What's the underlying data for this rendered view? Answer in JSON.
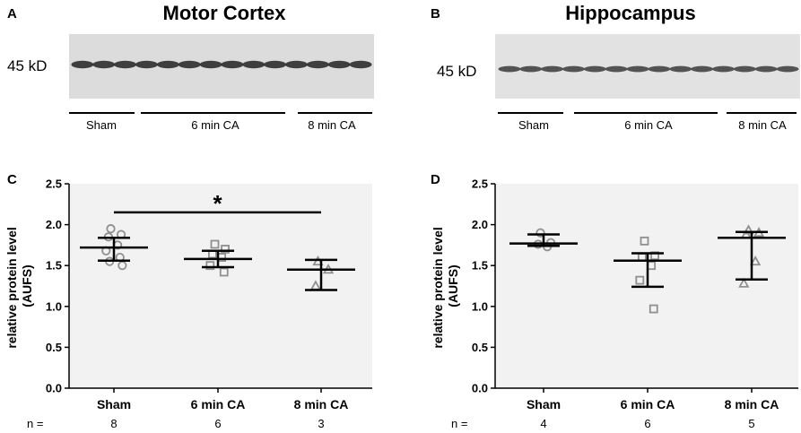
{
  "blots": [
    {
      "panel": "A",
      "title": "Motor Cortex",
      "marker": "45 kD",
      "groups": [
        "Sham",
        "6 min CA",
        "8 min CA"
      ],
      "bands": 14
    },
    {
      "panel": "B",
      "title": "Hippocampus",
      "marker": "45 kD",
      "groups": [
        "Sham",
        "6 min CA",
        "8 min CA"
      ],
      "bands": 14
    }
  ],
  "chart_data": [
    {
      "type": "scatter",
      "panel": "C",
      "title": "",
      "ylabel": "relative protein level (AUFS)",
      "ylabel_lines": [
        "relative protein level",
        "(AUFS)"
      ],
      "ylim": [
        0,
        2.5
      ],
      "yticks": [
        "0.0",
        "0.5",
        "1.0",
        "1.5",
        "2.0",
        "2.5"
      ],
      "categories": [
        "Sham",
        "6 min CA",
        "8 min CA"
      ],
      "markers": [
        "circle",
        "square",
        "triangle"
      ],
      "points": [
        [
          1.95,
          1.88,
          1.85,
          1.75,
          1.68,
          1.6,
          1.55,
          1.5
        ],
        [
          1.76,
          1.7,
          1.64,
          1.6,
          1.5,
          1.42
        ],
        [
          1.55,
          1.45,
          1.25
        ]
      ],
      "mean": [
        1.72,
        1.58,
        1.45
      ],
      "err_low": [
        1.56,
        1.48,
        1.2
      ],
      "err_high": [
        1.84,
        1.68,
        1.57
      ],
      "n_label": "n =",
      "n": [
        "8",
        "6",
        "3"
      ],
      "significance": {
        "from": 0,
        "to": 2,
        "level": 2.15,
        "label": "*"
      }
    },
    {
      "type": "scatter",
      "panel": "D",
      "title": "",
      "ylabel": "relative protein level (AUFS)",
      "ylabel_lines": [
        "relative protein level",
        "(AUFS)"
      ],
      "ylim": [
        0,
        2.5
      ],
      "yticks": [
        "0.0",
        "0.5",
        "1.0",
        "1.5",
        "2.0",
        "2.5"
      ],
      "categories": [
        "Sham",
        "6 min CA",
        "8 min CA"
      ],
      "markers": [
        "circle",
        "square",
        "triangle"
      ],
      "points": [
        [
          1.9,
          1.78,
          1.76,
          1.73
        ],
        [
          1.8,
          1.62,
          1.6,
          1.5,
          1.32,
          0.97
        ],
        [
          1.93,
          1.9,
          1.88,
          1.55,
          1.28
        ]
      ],
      "mean": [
        1.77,
        1.56,
        1.84
      ],
      "err_low": [
        1.74,
        1.24,
        1.33
      ],
      "err_high": [
        1.88,
        1.65,
        1.91
      ],
      "n_label": "n =",
      "n": [
        "4",
        "6",
        "5"
      ],
      "significance": null
    }
  ]
}
